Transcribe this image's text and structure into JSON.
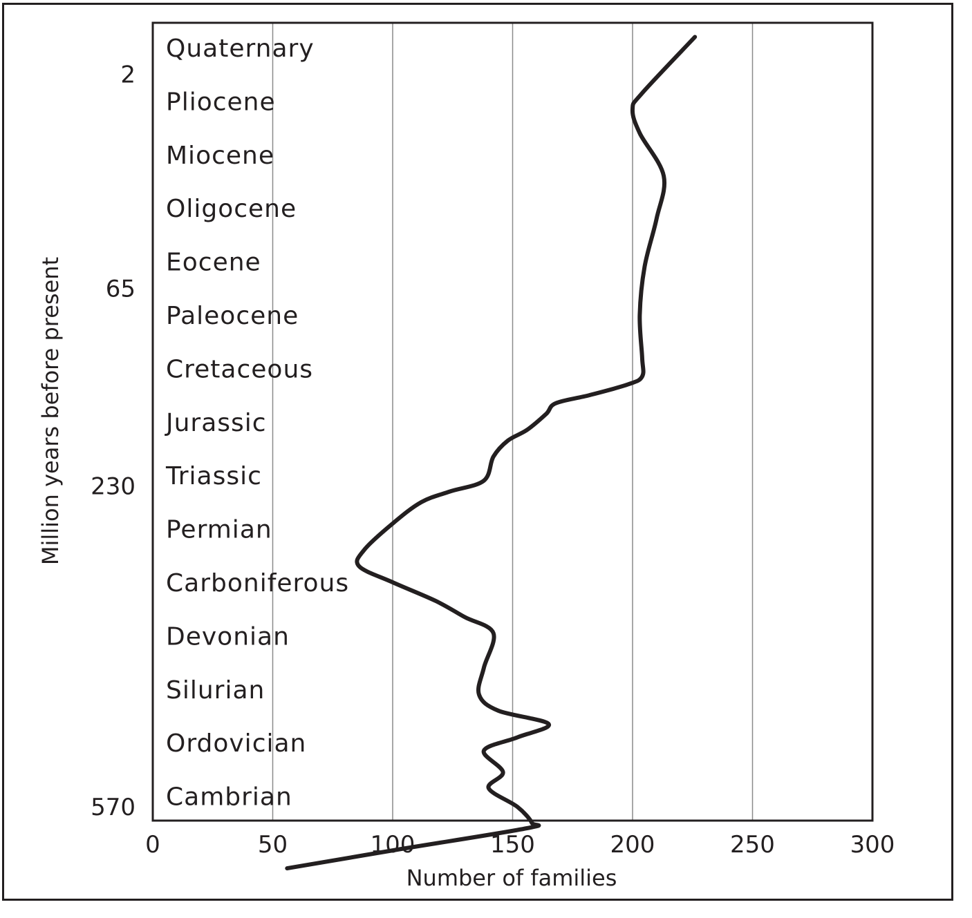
{
  "chart_data": {
    "type": "line",
    "xlabel": "Number of families",
    "ylabel": "Million years before present",
    "xlim": [
      0,
      300
    ],
    "x_ticks": [
      0,
      50,
      100,
      150,
      200,
      250,
      300
    ],
    "y_ticks": [
      {
        "label": "2",
        "at_period_index": 0.5
      },
      {
        "label": "65",
        "at_period_index": 4.5
      },
      {
        "label": "230",
        "at_period_index": 8.2
      },
      {
        "label": "570",
        "at_period_index": 14.2
      }
    ],
    "grid": {
      "vertical": true,
      "horizontal": false
    },
    "y_order": "top-to-bottom: youngest to oldest",
    "periods": [
      "Quaternary",
      "Pliocene",
      "Miocene",
      "Oligocene",
      "Eocene",
      "Paleocene",
      "Cretaceous",
      "Jurassic",
      "Triassic",
      "Permian",
      "Carboniferous",
      "Devonian",
      "Silurian",
      "Ordovician",
      "Cambrian"
    ],
    "series": [
      {
        "points": [
          {
            "t": -0.2,
            "families": 226
          },
          {
            "t": 0.85,
            "families": 204
          },
          {
            "t": 1.15,
            "families": 200
          },
          {
            "t": 1.6,
            "families": 203
          },
          {
            "t": 2.4,
            "families": 213
          },
          {
            "t": 3.2,
            "families": 210
          },
          {
            "t": 4.1,
            "families": 205
          },
          {
            "t": 5.0,
            "families": 203
          },
          {
            "t": 5.8,
            "families": 204
          },
          {
            "t": 6.15,
            "families": 204
          },
          {
            "t": 6.3,
            "families": 198
          },
          {
            "t": 6.5,
            "families": 182
          },
          {
            "t": 6.65,
            "families": 168
          },
          {
            "t": 6.85,
            "families": 164
          },
          {
            "t": 7.15,
            "families": 156
          },
          {
            "t": 7.35,
            "families": 148
          },
          {
            "t": 7.65,
            "families": 142
          },
          {
            "t": 8.1,
            "families": 138
          },
          {
            "t": 8.3,
            "families": 124
          },
          {
            "t": 8.5,
            "families": 112
          },
          {
            "t": 8.9,
            "families": 100
          },
          {
            "t": 9.4,
            "families": 88
          },
          {
            "t": 9.7,
            "families": 86
          },
          {
            "t": 10.0,
            "families": 100
          },
          {
            "t": 10.35,
            "families": 118
          },
          {
            "t": 10.65,
            "families": 130
          },
          {
            "t": 10.95,
            "families": 142
          },
          {
            "t": 11.6,
            "families": 138
          },
          {
            "t": 12.1,
            "families": 136
          },
          {
            "t": 12.4,
            "families": 144
          },
          {
            "t": 12.65,
            "families": 165
          },
          {
            "t": 12.9,
            "families": 152
          },
          {
            "t": 13.15,
            "families": 138
          },
          {
            "t": 13.55,
            "families": 146
          },
          {
            "t": 13.85,
            "families": 140
          },
          {
            "t": 14.2,
            "families": 152
          },
          {
            "t": 14.5,
            "families": 158
          },
          {
            "t": 14.6,
            "families": 156
          },
          {
            "t": 15.0,
            "families": 102
          },
          {
            "t": 15.35,
            "families": 56
          }
        ]
      }
    ]
  }
}
